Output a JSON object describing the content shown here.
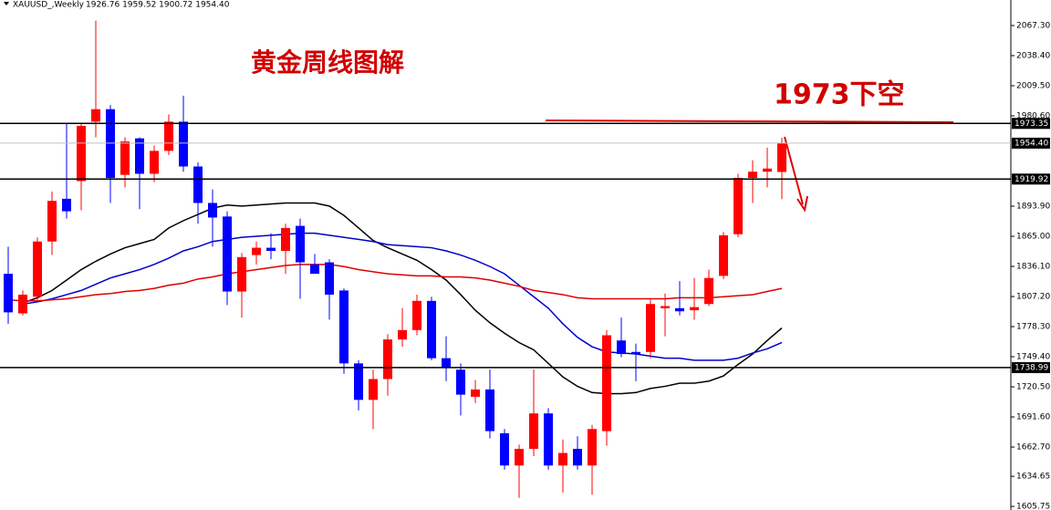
{
  "chart_data": {
    "type": "candlestick",
    "header": [
      "XAUUSD_,Weekly",
      "1926.76 1959.52 1900.72 1954.40"
    ],
    "title": "黄金周线图解",
    "annotation": "1973下空",
    "open": [
      1829,
      1791,
      1807,
      1860,
      1901,
      1918,
      1975,
      1987,
      1924,
      1959,
      1925,
      1947,
      1975,
      1932,
      1897,
      1884,
      1812,
      1847,
      1854,
      1851,
      1875,
      1838,
      1840,
      1813,
      1743,
      1708,
      1728,
      1766,
      1775,
      1803,
      1748,
      1737,
      1711,
      1718,
      1676,
      1645,
      1661,
      1695,
      1645,
      1661,
      1645,
      1678,
      1765,
      1754,
      1754,
      1796,
      1796,
      1794,
      1800,
      1827,
      1867,
      1921,
      1927,
      1926.76
    ],
    "high": [
      1855,
      1813,
      1864,
      1908,
      1974,
      1974,
      2072,
      1991,
      1960,
      1960,
      1952,
      1982,
      2000,
      1936,
      1910,
      1889,
      1849,
      1860,
      1868,
      1877,
      1882,
      1848,
      1843,
      1815,
      1746,
      1737,
      1771,
      1796,
      1809,
      1807,
      1769,
      1743,
      1727,
      1737,
      1680,
      1665,
      1737,
      1700,
      1670,
      1673,
      1684,
      1775,
      1787,
      1762,
      1804,
      1810,
      1822,
      1825,
      1833,
      1869,
      1925,
      1938,
      1950,
      1959.52
    ],
    "low": [
      1781,
      1789,
      1803,
      1847,
      1882,
      1890,
      1960,
      1897,
      1912,
      1891,
      1917,
      1943,
      1927,
      1877,
      1855,
      1799,
      1787,
      1838,
      1843,
      1829,
      1805,
      1832,
      1785,
      1733,
      1698,
      1680,
      1712,
      1759,
      1770,
      1746,
      1726,
      1693,
      1705,
      1671,
      1641,
      1614,
      1654,
      1641,
      1619,
      1641,
      1617,
      1664,
      1749,
      1726,
      1748,
      1769,
      1789,
      1785,
      1798,
      1824,
      1864,
      1897,
      1912,
      1900.72
    ],
    "close": [
      1792,
      1809,
      1860,
      1899,
      1889,
      1971,
      1987,
      1921,
      1956,
      1925,
      1947,
      1975,
      1932,
      1897,
      1883,
      1812,
      1845,
      1854,
      1851,
      1873,
      1840,
      1829,
      1809,
      1743,
      1708,
      1728,
      1766,
      1775,
      1803,
      1748,
      1739,
      1713,
      1718,
      1678,
      1645,
      1661,
      1695,
      1645,
      1657,
      1645,
      1680,
      1770,
      1752,
      1752,
      1800,
      1798,
      1793,
      1797,
      1825,
      1866,
      1921,
      1927,
      1930,
      1954.4
    ],
    "up_color": "#ff0000",
    "down_color": "#0000ff",
    "series": [
      {
        "color": "#000000",
        "values": [
          null,
          1801,
          1806,
          1813,
          1823,
          1833,
          1841,
          1848,
          1854,
          1858,
          1862,
          1873,
          1880,
          1886,
          1892,
          1895,
          1894,
          1895,
          1896,
          1897,
          1897,
          1897,
          1894,
          1885,
          1873,
          1861,
          1854,
          1848,
          1842,
          1833,
          1823,
          1809,
          1794,
          1782,
          1772,
          1763,
          1756,
          1743,
          1730,
          1721,
          1715,
          1714,
          1714,
          1715,
          1719,
          1721,
          1724,
          1724,
          1726,
          1731,
          1742,
          1752,
          1765,
          1777
        ]
      },
      {
        "color": "#0000cc",
        "values": [
          null,
          1800,
          1802,
          1805,
          1809,
          1813,
          1819,
          1825,
          1829,
          1833,
          1838,
          1844,
          1851,
          1855,
          1860,
          1862,
          1864,
          1865,
          1866,
          1867,
          1868,
          1868,
          1866,
          1864,
          1862,
          1860,
          1857,
          1856,
          1855,
          1854,
          1851,
          1847,
          1842,
          1836,
          1829,
          1818,
          1807,
          1796,
          1781,
          1768,
          1759,
          1754,
          1753,
          1752,
          1750,
          1748,
          1748,
          1746,
          1746,
          1746,
          1748,
          1753,
          1757,
          1763
        ]
      },
      {
        "color": "#e00000",
        "values": [
          1804,
          1803,
          1803,
          1804,
          1805,
          1807,
          1809,
          1810,
          1812,
          1813,
          1815,
          1818,
          1820,
          1824,
          1826,
          1829,
          1831,
          1833,
          1835,
          1837,
          1838,
          1838,
          1838,
          1836,
          1833,
          1831,
          1829,
          1828,
          1827,
          1827,
          1826,
          1826,
          1825,
          1823,
          1820,
          1817,
          1813,
          1811,
          1809,
          1806,
          1805,
          1805,
          1805,
          1805,
          1805,
          1805,
          1806,
          1806,
          1806,
          1807,
          1808,
          1809,
          1812,
          1815
        ]
      }
    ],
    "levels": [
      {
        "value": 1973.35,
        "color": "#000000"
      },
      {
        "value": {
          "value": 1954.4,
          "label": "1954.40"
        },
        "color": "#c0c0c0"
      },
      {
        "value": 1919.92,
        "color": "#000000"
      },
      {
        "value": 1738.99,
        "color": "#000000"
      }
    ],
    "ylim": [
      1602.3,
      2091.8
    ],
    "yticks": [
      {
        "value": 2067.3,
        "label": "2067.30"
      },
      {
        "value": 2038.4,
        "label": "2038.40"
      },
      {
        "value": 2009.5,
        "label": "2009.50"
      },
      {
        "value": 1980.6,
        "label": "1980.60"
      },
      {
        "value": 1893.9,
        "label": "1893.90"
      },
      {
        "value": 1865,
        "label": "1865.00"
      },
      {
        "value": 1836.1,
        "label": "1836.10"
      },
      {
        "value": 1807.2,
        "label": "1807.20"
      },
      {
        "value": 1778.3,
        "label": "1778.30"
      },
      {
        "value": 1749.4,
        "label": "1749.40"
      },
      {
        "value": 1720.5,
        "label": "1720.50"
      },
      {
        "value": 1691.6,
        "label": "1691.60"
      },
      {
        "value": 1662.7,
        "label": "1662.70"
      },
      1634.65,
      1605.75
    ]
  }
}
